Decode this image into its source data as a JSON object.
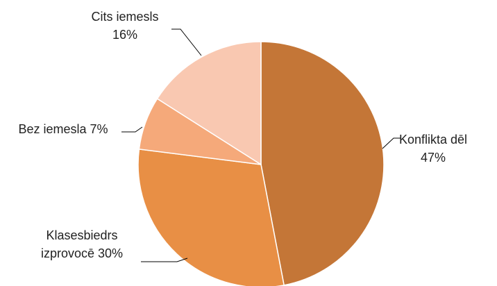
{
  "chart_data": {
    "type": "pie",
    "categories": [
      "Konflikta dēļ",
      "Klasesbiedrs izprovocē",
      "Bez iemesla",
      "Cits iemesls"
    ],
    "values": [
      47,
      30,
      7,
      16
    ],
    "unit": "%",
    "title": "",
    "legend": "none",
    "colors": [
      "#C47637",
      "#E88F45",
      "#F5A97A",
      "#F9C8B1"
    ],
    "labels": [
      {
        "lines": [
          "Konflikta dēl",
          "47%"
        ]
      },
      {
        "lines": [
          "Klasesbiedrs",
          "izprovocē 30%"
        ]
      },
      {
        "lines": [
          "Bez iemesla 7%"
        ]
      },
      {
        "lines": [
          "Cits iemesls",
          "16%"
        ]
      }
    ]
  }
}
